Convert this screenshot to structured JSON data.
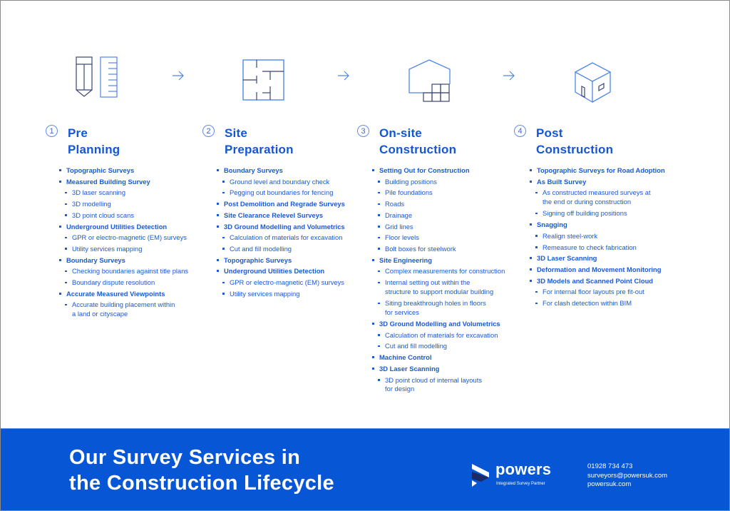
{
  "colors": {
    "accent": "#1356d6",
    "banner": "#0656d6",
    "icon_light": "#4f86e8",
    "icon_dark": "#3a4570"
  },
  "stages": [
    {
      "number": "1",
      "title_line1": "Pre",
      "title_line2": "Planning",
      "icon": "pencil-ruler-icon",
      "items": [
        {
          "label": "Topographic Surveys",
          "subs": []
        },
        {
          "label": "Measured Building Survey",
          "subs": [
            "3D laser scanning",
            "3D modelling",
            "3D point cloud scans"
          ]
        },
        {
          "label": "Underground Utilities Detection",
          "subs": [
            "GPR or electro-magnetic (EM) surveys",
            "Utility services mapping"
          ]
        },
        {
          "label": "Boundary Surveys",
          "subs": [
            "Checking boundaries against title plans",
            "Boundary dispute resolution"
          ]
        },
        {
          "label": "Accurate Measured Viewpoints",
          "subs": [
            [
              "Accurate building placement within",
              "a land or cityscape"
            ]
          ]
        }
      ]
    },
    {
      "number": "2",
      "title_line1": "Site",
      "title_line2": "Preparation",
      "icon": "floor-plan-icon",
      "items": [
        {
          "label": "Boundary Surveys",
          "subs": [
            "Ground level and boundary check",
            "Pegging out boundaries for fencing"
          ]
        },
        {
          "label": "Post Demolition and Regrade Surveys",
          "subs": []
        },
        {
          "label": "Site Clearance Relevel Surveys",
          "subs": []
        },
        {
          "label": "3D Ground Modelling and Volumetrics",
          "subs": [
            "Calculation of materials for excavation",
            "Cut and fill modelling"
          ]
        },
        {
          "label": "Topographic Surveys",
          "subs": []
        },
        {
          "label": "Underground Utilities Detection",
          "subs": [
            "GPR or electro-magnetic (EM) surveys",
            "Utility services mapping"
          ]
        }
      ]
    },
    {
      "number": "3",
      "title_line1": "On-site",
      "title_line2": "Construction",
      "icon": "house-frame-icon",
      "items": [
        {
          "label": "Setting Out for Construction",
          "subs": [
            "Building positions",
            "Pile foundations",
            "Roads",
            "Drainage",
            "Grid lines",
            "Floor levels",
            "Bolt boxes for steelwork"
          ]
        },
        {
          "label": "Site Engineering",
          "subs": [
            "Complex measurements for construction",
            [
              "Internal setting out within the",
              "structure to support modular building"
            ],
            [
              "Siting breakthrough holes in floors",
              "for services"
            ]
          ]
        },
        {
          "label": "3D Ground Modelling and Volumetrics",
          "subs": [
            "Calculation of materials for excavation",
            "Cut and fill modelling"
          ]
        },
        {
          "label": "Machine Control",
          "subs": []
        },
        {
          "label": "3D Laser Scanning",
          "subs": [
            [
              "3D point cloud of internal layouts",
              "for design"
            ]
          ]
        }
      ]
    },
    {
      "number": "4",
      "title_line1": "Post",
      "title_line2": "Construction",
      "icon": "cube-building-icon",
      "items": [
        {
          "label": "Topographic Surveys for Road Adoption",
          "subs": []
        },
        {
          "label": "As Built Survey",
          "subs": [
            [
              "As constructed measured surveys at",
              "the end or during construction"
            ],
            "Signing off building positions"
          ]
        },
        {
          "label": "Snagging",
          "subs": [
            "Realign steel-work",
            "Remeasure to check fabrication"
          ]
        },
        {
          "label": "3D Laser Scanning",
          "subs": []
        },
        {
          "label": "Deformation and Movement Monitoring",
          "subs": []
        },
        {
          "label": "3D Models and Scanned Point Cloud",
          "subs": [
            "For internal floor layouts pre fit-out",
            "For clash detection within BIM"
          ]
        }
      ]
    }
  ],
  "banner": {
    "title_line1": "Our Survey Services in",
    "title_line2": "the Construction Lifecycle",
    "brand_name": "powers",
    "tagline": "Integrated Survey Partner",
    "phone": "01928 734 473",
    "email": "surveyors@powersuk.com",
    "website": "powersuk.com"
  }
}
